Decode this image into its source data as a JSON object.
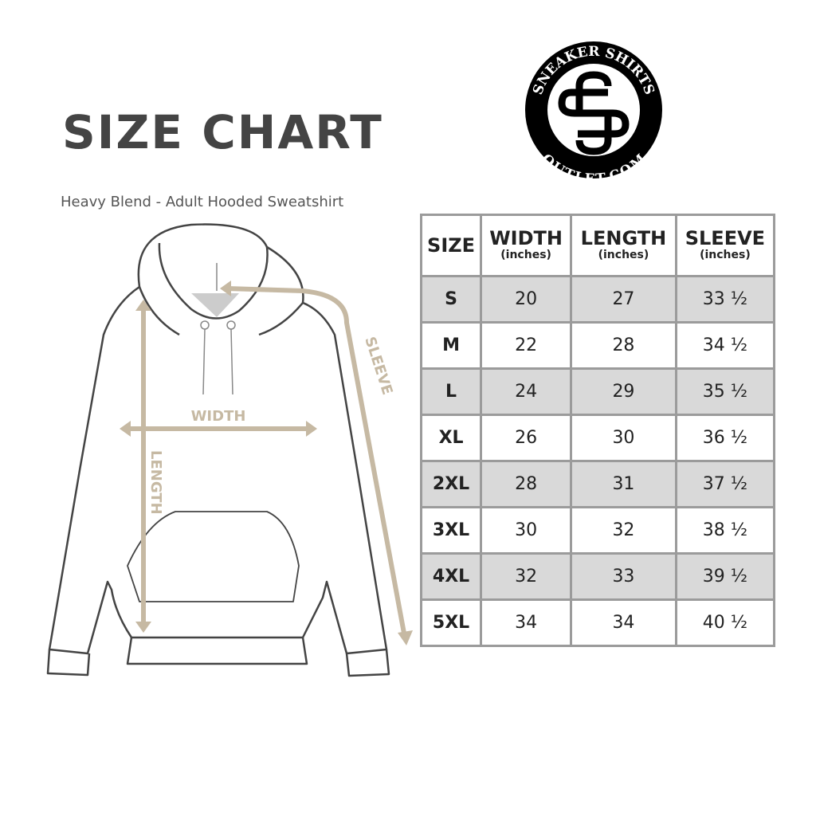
{
  "title": "SIZE CHART",
  "subtitle": "Heavy Blend - Adult Hooded Sweatshirt",
  "logo": {
    "top_text": "SNEAKER SHIRTS",
    "bottom_text": "OUTLET.COM"
  },
  "diagram": {
    "width_label": "WIDTH",
    "length_label": "LENGTH",
    "sleeve_label": "SLEEVE",
    "arrow_color": "#c6b9a3"
  },
  "table": {
    "headers": [
      {
        "label": "SIZE",
        "unit": ""
      },
      {
        "label": "WIDTH",
        "unit": "(inches)"
      },
      {
        "label": "LENGTH",
        "unit": "(inches)"
      },
      {
        "label": "SLEEVE",
        "unit": "(inches)"
      }
    ],
    "rows": [
      [
        "S",
        "20",
        "27",
        "33 ½"
      ],
      [
        "M",
        "22",
        "28",
        "34 ½"
      ],
      [
        "L",
        "24",
        "29",
        "35 ½"
      ],
      [
        "XL",
        "26",
        "30",
        "36 ½"
      ],
      [
        "2XL",
        "28",
        "31",
        "37 ½"
      ],
      [
        "3XL",
        "30",
        "32",
        "38 ½"
      ],
      [
        "4XL",
        "32",
        "33",
        "39 ½"
      ],
      [
        "5XL",
        "34",
        "34",
        "40 ½"
      ]
    ]
  }
}
